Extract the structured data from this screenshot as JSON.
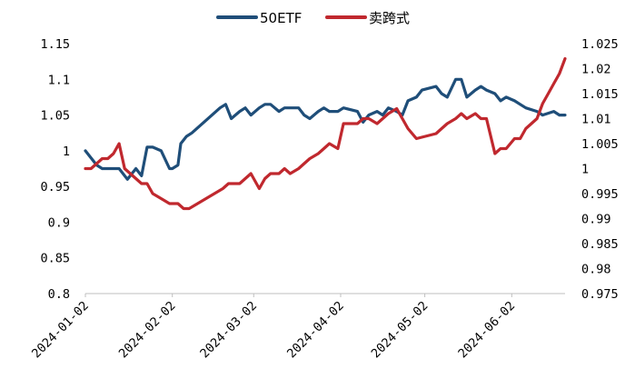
{
  "chart_data": {
    "type": "line",
    "legend_position": "top-center",
    "grid": false,
    "colors": {
      "50ETF": "#1f4e79",
      "卖跨式": "#c0282e"
    },
    "y_left": {
      "lim": [
        0.8,
        1.15
      ],
      "ticks": [
        "0.8",
        "0.85",
        "0.9",
        "0.95",
        "1",
        "1.05",
        "1.1",
        "1.15"
      ]
    },
    "y_right": {
      "lim": [
        0.975,
        1.025
      ],
      "ticks": [
        "0.975",
        "0.98",
        "0.985",
        "0.99",
        "0.995",
        "1",
        "1.005",
        "1.01",
        "1.015",
        "1.02",
        "1.025"
      ]
    },
    "x_ticks": [
      "2024-01-02",
      "2024-02-02",
      "2024-03-02",
      "2024-04-02",
      "2024-05-02",
      "2024-06-02"
    ],
    "series": [
      {
        "name": "50ETF",
        "axis": "left",
        "x": [
          "2024-01-02",
          "2024-01-04",
          "2024-01-06",
          "2024-01-08",
          "2024-01-11",
          "2024-01-14",
          "2024-01-17",
          "2024-01-20",
          "2024-01-22",
          "2024-01-24",
          "2024-01-26",
          "2024-01-29",
          "2024-02-01",
          "2024-02-02",
          "2024-02-04",
          "2024-02-05",
          "2024-02-07",
          "2024-02-09",
          "2024-02-19",
          "2024-02-21",
          "2024-02-23",
          "2024-02-26",
          "2024-02-28",
          "2024-03-01",
          "2024-03-04",
          "2024-03-06",
          "2024-03-08",
          "2024-03-11",
          "2024-03-13",
          "2024-03-15",
          "2024-03-18",
          "2024-03-20",
          "2024-03-22",
          "2024-03-25",
          "2024-03-27",
          "2024-03-29",
          "2024-04-01",
          "2024-04-03",
          "2024-04-08",
          "2024-04-10",
          "2024-04-12",
          "2024-04-15",
          "2024-04-17",
          "2024-04-19",
          "2024-04-22",
          "2024-04-24",
          "2024-04-26",
          "2024-04-29",
          "2024-05-01",
          "2024-05-06",
          "2024-05-08",
          "2024-05-10",
          "2024-05-13",
          "2024-05-15",
          "2024-05-17",
          "2024-05-20",
          "2024-05-22",
          "2024-05-24",
          "2024-05-27",
          "2024-05-29",
          "2024-05-31",
          "2024-06-03",
          "2024-06-05",
          "2024-06-07",
          "2024-06-11",
          "2024-06-13",
          "2024-06-17",
          "2024-06-19",
          "2024-06-21"
        ],
        "values": [
          1.0,
          0.99,
          0.98,
          0.975,
          0.975,
          0.975,
          0.96,
          0.975,
          0.965,
          1.005,
          1.005,
          1.0,
          0.975,
          0.975,
          0.98,
          1.01,
          1.02,
          1.025,
          1.06,
          1.065,
          1.045,
          1.055,
          1.06,
          1.05,
          1.06,
          1.065,
          1.065,
          1.055,
          1.06,
          1.06,
          1.06,
          1.05,
          1.045,
          1.055,
          1.06,
          1.055,
          1.055,
          1.06,
          1.055,
          1.04,
          1.05,
          1.055,
          1.05,
          1.06,
          1.055,
          1.05,
          1.07,
          1.075,
          1.085,
          1.09,
          1.08,
          1.075,
          1.1,
          1.1,
          1.075,
          1.085,
          1.09,
          1.085,
          1.08,
          1.07,
          1.075,
          1.07,
          1.065,
          1.06,
          1.055,
          1.05,
          1.055,
          1.05,
          1.05
        ]
      },
      {
        "name": "卖跨式",
        "axis": "right",
        "x": [
          "2024-01-02",
          "2024-01-04",
          "2024-01-06",
          "2024-01-08",
          "2024-01-10",
          "2024-01-12",
          "2024-01-14",
          "2024-01-16",
          "2024-01-18",
          "2024-01-20",
          "2024-01-22",
          "2024-01-24",
          "2024-01-26",
          "2024-01-29",
          "2024-02-01",
          "2024-02-04",
          "2024-02-06",
          "2024-02-08",
          "2024-02-20",
          "2024-02-22",
          "2024-02-26",
          "2024-02-28",
          "2024-03-01",
          "2024-03-04",
          "2024-03-06",
          "2024-03-08",
          "2024-03-11",
          "2024-03-13",
          "2024-03-15",
          "2024-03-18",
          "2024-03-20",
          "2024-03-22",
          "2024-03-25",
          "2024-03-27",
          "2024-03-29",
          "2024-04-01",
          "2024-04-03",
          "2024-04-08",
          "2024-04-10",
          "2024-04-12",
          "2024-04-15",
          "2024-04-17",
          "2024-04-19",
          "2024-04-22",
          "2024-04-24",
          "2024-04-26",
          "2024-04-29",
          "2024-05-06",
          "2024-05-08",
          "2024-05-10",
          "2024-05-13",
          "2024-05-15",
          "2024-05-17",
          "2024-05-20",
          "2024-05-22",
          "2024-05-24",
          "2024-05-27",
          "2024-05-29",
          "2024-05-31",
          "2024-06-03",
          "2024-06-05",
          "2024-06-07",
          "2024-06-11",
          "2024-06-13",
          "2024-06-15",
          "2024-06-17",
          "2024-06-19",
          "2024-06-21"
        ],
        "values": [
          1.0,
          1.0,
          1.001,
          1.002,
          1.002,
          1.003,
          1.005,
          1.0,
          0.999,
          0.998,
          0.997,
          0.997,
          0.995,
          0.994,
          0.993,
          0.993,
          0.992,
          0.992,
          0.996,
          0.997,
          0.997,
          0.998,
          0.999,
          0.996,
          0.998,
          0.999,
          0.999,
          1.0,
          0.999,
          1.0,
          1.001,
          1.002,
          1.003,
          1.004,
          1.005,
          1.004,
          1.009,
          1.009,
          1.01,
          1.01,
          1.009,
          1.01,
          1.011,
          1.012,
          1.01,
          1.008,
          1.006,
          1.007,
          1.008,
          1.009,
          1.01,
          1.011,
          1.01,
          1.011,
          1.01,
          1.01,
          1.003,
          1.004,
          1.004,
          1.006,
          1.006,
          1.008,
          1.01,
          1.013,
          1.015,
          1.017,
          1.019,
          1.022
        ]
      }
    ]
  }
}
